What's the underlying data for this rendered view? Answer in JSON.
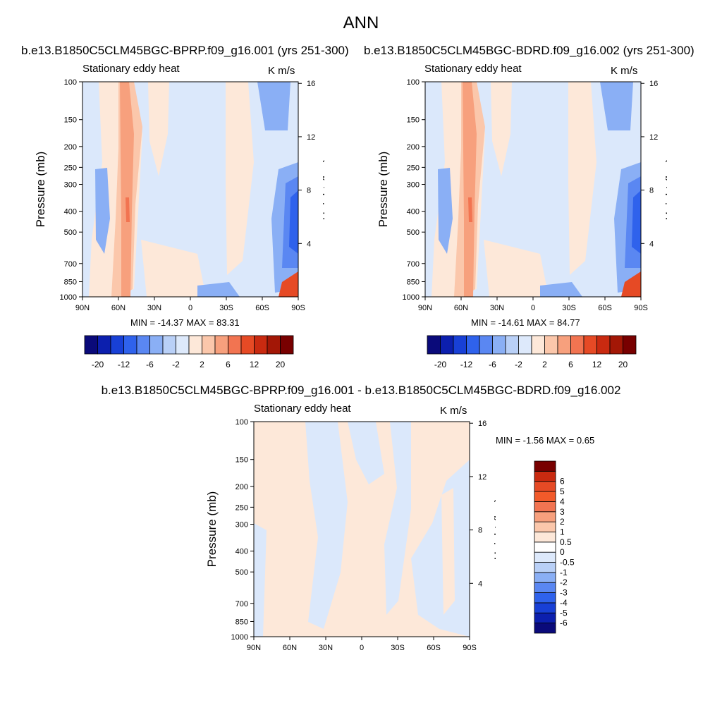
{
  "main_title": "ANN",
  "panel_a": {
    "case": "b.e13.B1850C5CLM45BGC-BPRP.f09_g16.001 (yrs 251-300)",
    "field": "Stationary eddy heat",
    "units": "K m/s",
    "minmax": "MIN = -14.37  MAX =  83.31"
  },
  "panel_b": {
    "case": "b.e13.B1850C5CLM45BGC-BDRD.f09_g16.002 (yrs 251-300)",
    "field": "Stationary eddy heat",
    "units": "K m/s",
    "minmax": "MIN = -14.61  MAX =  84.77"
  },
  "panel_c": {
    "case": "b.e13.B1850C5CLM45BGC-BPRP.f09_g16.001 - b.e13.B1850C5CLM45BGC-BDRD.f09_g16.002",
    "field": "Stationary eddy heat",
    "units": "K m/s",
    "minmax": "MIN =  -1.56  MAX =   0.65"
  },
  "axes": {
    "pressure_label": "Pressure (mb)",
    "height_label": "Height (km)",
    "pressure_ticks": [
      "100",
      "150",
      "200",
      "250",
      "300",
      "400",
      "500",
      "700",
      "850",
      "1000"
    ],
    "height_ticks": [
      "4",
      "8",
      "12",
      "16"
    ],
    "lat_ticks": [
      "90N",
      "60N",
      "30N",
      "0",
      "30S",
      "60S",
      "90S"
    ]
  },
  "colorbar_top": {
    "colors": [
      "#0a0a7a",
      "#0c1fae",
      "#1840d6",
      "#2f62ec",
      "#5a87f2",
      "#8aaff5",
      "#b9d0f7",
      "#dde9fb",
      "#fde8d9",
      "#fbc7ab",
      "#f7a07d",
      "#f27451",
      "#e64a25",
      "#c92a10",
      "#a31706",
      "#780000"
    ],
    "labels": [
      "-20",
      "-12",
      "-6",
      "-2",
      "2",
      "6",
      "12",
      "20"
    ]
  },
  "colorbar_diff": {
    "colors": [
      "#0a0a7a",
      "#0c1fae",
      "#1840d6",
      "#2f62ec",
      "#5a87f2",
      "#8aaff5",
      "#b9d0f7",
      "#dde9fb",
      "#ffffff",
      "#fde8d9",
      "#fbc7ab",
      "#f7a07d",
      "#f27451",
      "#f25a2a",
      "#e64a25",
      "#c92a10",
      "#780000"
    ],
    "labels": [
      "-6",
      "-5",
      "-4",
      "-3",
      "-2",
      "-1",
      "-0.5",
      "0",
      "0.5",
      "1",
      "2",
      "3",
      "4",
      "5",
      "6"
    ]
  },
  "chart_data": [
    {
      "type": "heatmap",
      "title": "b.e13.B1850C5CLM45BGC-BPRP.f09_g16.001 (yrs 251-300)",
      "subtitle": "Stationary eddy heat",
      "units": "K m/s",
      "xlabel": "",
      "ylabel": "Pressure (mb)",
      "y2label": "Height (km)",
      "xlim": [
        "90N",
        "90S"
      ],
      "ylim": [
        1000,
        100
      ],
      "y_scale": "log",
      "min": -14.37,
      "max": 83.31
    },
    {
      "type": "heatmap",
      "title": "b.e13.B1850C5CLM45BGC-BDRD.f09_g16.002 (yrs 251-300)",
      "subtitle": "Stationary eddy heat",
      "units": "K m/s",
      "xlabel": "",
      "ylabel": "Pressure (mb)",
      "y2label": "Height (km)",
      "xlim": [
        "90N",
        "90S"
      ],
      "ylim": [
        1000,
        100
      ],
      "y_scale": "log",
      "min": -14.61,
      "max": 84.77
    },
    {
      "type": "heatmap",
      "title": "b.e13.B1850C5CLM45BGC-BPRP.f09_g16.001 - b.e13.B1850C5CLM45BGC-BDRD.f09_g16.002",
      "subtitle": "Stationary eddy heat",
      "units": "K m/s",
      "xlabel": "",
      "ylabel": "Pressure (mb)",
      "y2label": "Height (km)",
      "xlim": [
        "90N",
        "90S"
      ],
      "ylim": [
        1000,
        100
      ],
      "y_scale": "log",
      "min": -1.56,
      "max": 0.65
    }
  ]
}
